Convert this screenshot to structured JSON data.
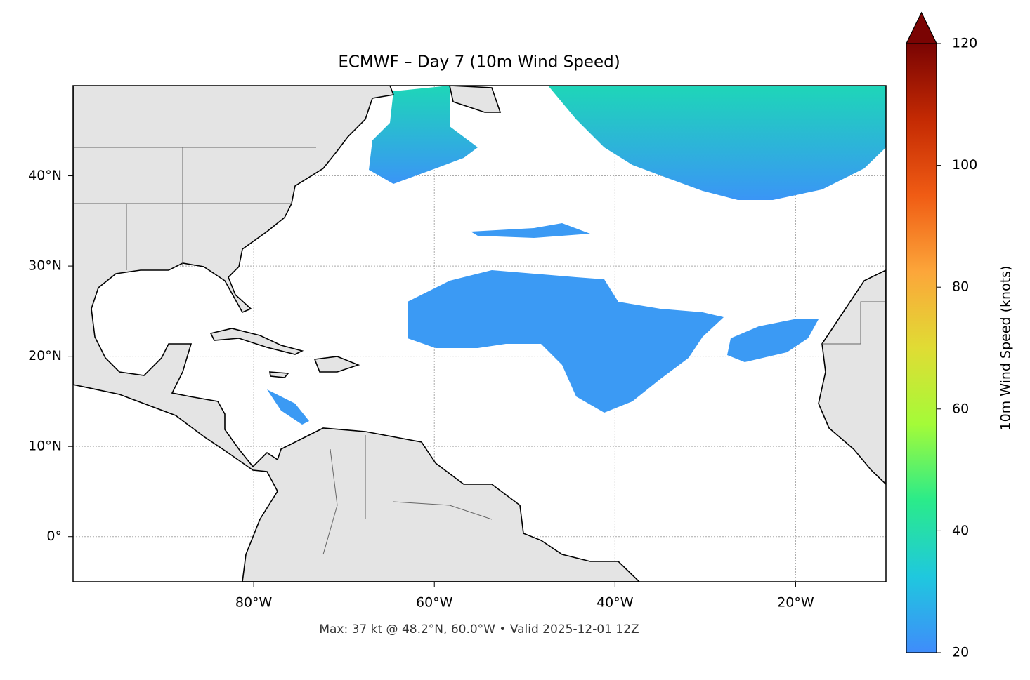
{
  "chart_data": {
    "type": "map",
    "title": "ECMWF – Day 7 (10m Wind Speed)",
    "annotation": "Max: 37 kt @ 48.2°N, 60.0°W • Valid 2025-12-01 12Z",
    "xlim": [
      -100,
      -10
    ],
    "ylim": [
      -5,
      50
    ],
    "xticks": [
      {
        "value": -80,
        "label": "80°W"
      },
      {
        "value": -60,
        "label": "60°W"
      },
      {
        "value": -40,
        "label": "40°W"
      },
      {
        "value": -20,
        "label": "20°W"
      }
    ],
    "yticks": [
      {
        "value": 0,
        "label": "0°"
      },
      {
        "value": 10,
        "label": "10°N"
      },
      {
        "value": 20,
        "label": "20°N"
      },
      {
        "value": 30,
        "label": "30°N"
      },
      {
        "value": 40,
        "label": "40°N"
      }
    ],
    "grid": true,
    "colorbar": {
      "label": "10m Wind Speed (knots)",
      "lim": [
        20,
        120
      ],
      "ticks": [
        20,
        40,
        60,
        80,
        100,
        120
      ],
      "colors": [
        "#3f8cfb",
        "#1fc8de",
        "#2aeb8a",
        "#a4fb38",
        "#e0dc34",
        "#fca63a",
        "#f05c14",
        "#c42a03",
        "#7a0403"
      ]
    }
  }
}
